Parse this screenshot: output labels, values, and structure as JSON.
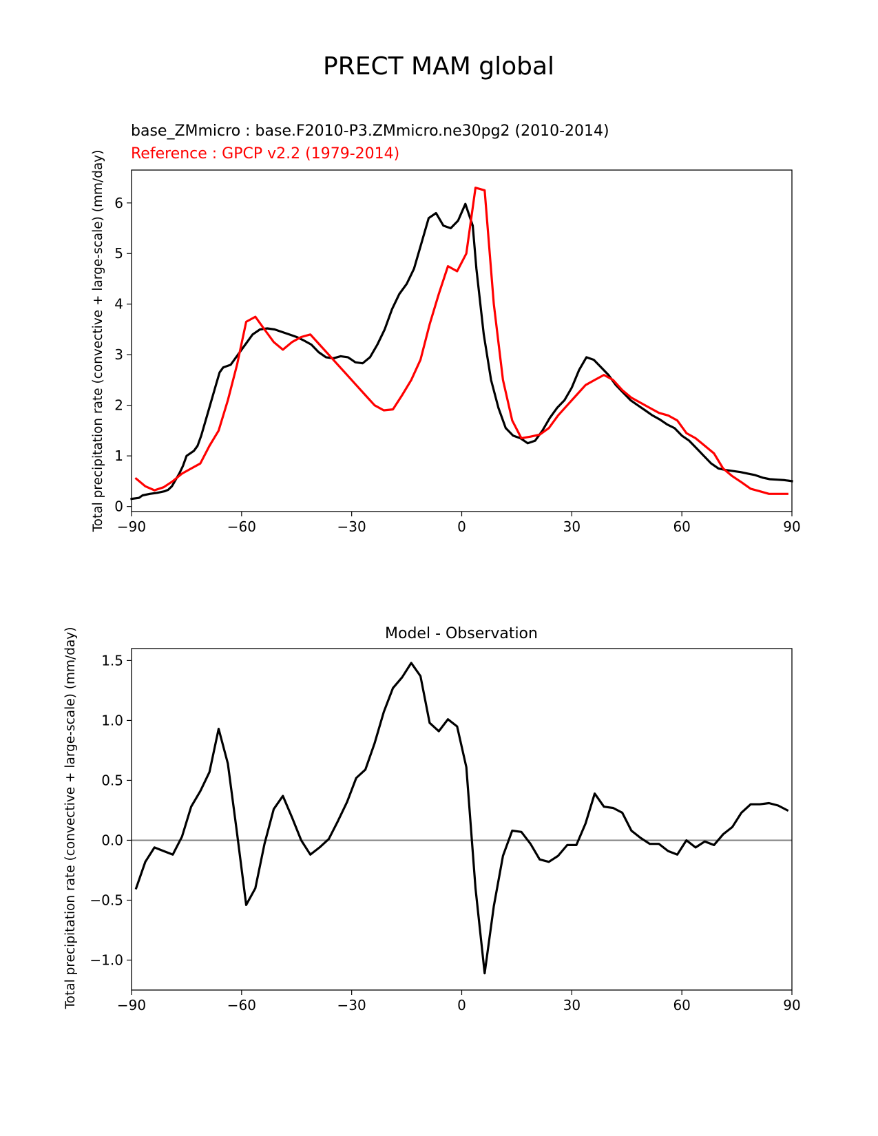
{
  "figure": {
    "suptitle": "PRECT MAM global"
  },
  "chart_data": [
    {
      "type": "line",
      "subtitle_test": "base_ZMmicro : base.F2010-P3.ZMmicro.ne30pg2 (2010-2014)",
      "subtitle_ref": "Reference : GPCP v2.2 (1979-2014)",
      "xlabel": "",
      "ylabel": "Total precipitation rate (convective + large-scale) (mm/day)",
      "xlim": [
        -90,
        90
      ],
      "ylim": [
        -0.1,
        6.65
      ],
      "xticks": [
        -90,
        -60,
        -30,
        0,
        30,
        60,
        90
      ],
      "xtick_labels": [
        "−90",
        "−60",
        "−30",
        "0",
        "30",
        "60",
        "90"
      ],
      "yticks": [
        0,
        1,
        2,
        3,
        4,
        5,
        6
      ],
      "ytick_labels": [
        "0",
        "1",
        "2",
        "3",
        "4",
        "5",
        "6"
      ],
      "grid": false,
      "series": [
        {
          "name": "base_ZMmicro",
          "color": "#000000",
          "x": [
            -90,
            -88,
            -87,
            -85,
            -83,
            -81,
            -80,
            -79,
            -77,
            -76,
            -75,
            -73,
            -72,
            -71,
            -69,
            -67,
            -66,
            -65,
            -63,
            -61,
            -59,
            -57,
            -55,
            -53,
            -51,
            -49,
            -47,
            -45,
            -43,
            -41,
            -39,
            -37,
            -35,
            -33,
            -31,
            -29,
            -27,
            -25,
            -23,
            -21,
            -19,
            -17,
            -15,
            -13,
            -11,
            -9,
            -7,
            -5,
            -3,
            -1,
            1,
            3,
            4,
            6,
            8,
            10,
            12,
            14,
            16,
            18,
            20,
            22,
            24,
            26,
            28,
            30,
            32,
            34,
            36,
            38,
            40,
            42,
            44,
            46,
            48,
            50,
            52,
            54,
            56,
            58,
            60,
            62,
            64,
            66,
            68,
            70,
            72,
            74,
            76,
            78,
            80,
            82,
            84,
            86,
            88,
            90
          ],
          "values": [
            0.15,
            0.17,
            0.22,
            0.25,
            0.27,
            0.3,
            0.33,
            0.4,
            0.65,
            0.8,
            1.0,
            1.1,
            1.2,
            1.4,
            1.9,
            2.4,
            2.65,
            2.75,
            2.8,
            3.0,
            3.2,
            3.4,
            3.5,
            3.52,
            3.5,
            3.45,
            3.4,
            3.35,
            3.28,
            3.2,
            3.05,
            2.95,
            2.93,
            2.97,
            2.95,
            2.85,
            2.83,
            2.95,
            3.2,
            3.5,
            3.9,
            4.2,
            4.4,
            4.7,
            5.2,
            5.7,
            5.8,
            5.55,
            5.5,
            5.65,
            5.98,
            5.55,
            4.7,
            3.4,
            2.5,
            1.95,
            1.55,
            1.4,
            1.35,
            1.25,
            1.3,
            1.5,
            1.75,
            1.95,
            2.1,
            2.35,
            2.7,
            2.95,
            2.9,
            2.75,
            2.6,
            2.4,
            2.25,
            2.1,
            2.0,
            1.9,
            1.8,
            1.72,
            1.62,
            1.55,
            1.4,
            1.3,
            1.15,
            1.0,
            0.85,
            0.75,
            0.72,
            0.7,
            0.68,
            0.65,
            0.62,
            0.57,
            0.54,
            0.53,
            0.52,
            0.5
          ]
        },
        {
          "name": "Reference : GPCP v2.2",
          "color": "#ff0000",
          "x": [
            -88.75,
            -86.25,
            -83.75,
            -81.25,
            -78.75,
            -76.25,
            -73.75,
            -71.25,
            -68.75,
            -66.25,
            -63.75,
            -61.25,
            -58.75,
            -56.25,
            -53.75,
            -51.25,
            -48.75,
            -46.25,
            -43.75,
            -41.25,
            -38.75,
            -36.25,
            -33.75,
            -31.25,
            -28.75,
            -26.25,
            -23.75,
            -21.25,
            -18.75,
            -16.25,
            -13.75,
            -11.25,
            -8.75,
            -6.25,
            -3.75,
            -1.25,
            1.25,
            3.75,
            6.25,
            8.75,
            11.25,
            13.75,
            16.25,
            18.75,
            21.25,
            23.75,
            26.25,
            28.75,
            31.25,
            33.75,
            36.25,
            38.75,
            41.25,
            43.75,
            46.25,
            48.75,
            51.25,
            53.75,
            56.25,
            58.75,
            61.25,
            63.75,
            66.25,
            68.75,
            71.25,
            73.75,
            76.25,
            78.75,
            81.25,
            83.75,
            86.25,
            88.75
          ],
          "values": [
            0.55,
            0.4,
            0.32,
            0.38,
            0.5,
            0.65,
            0.75,
            0.85,
            1.2,
            1.5,
            2.1,
            2.8,
            3.65,
            3.75,
            3.5,
            3.25,
            3.1,
            3.25,
            3.35,
            3.4,
            3.2,
            3.0,
            2.8,
            2.6,
            2.4,
            2.2,
            2.0,
            1.9,
            1.92,
            2.2,
            2.5,
            2.9,
            3.6,
            4.2,
            4.75,
            4.65,
            5.0,
            6.3,
            6.25,
            4.0,
            2.5,
            1.7,
            1.35,
            1.38,
            1.42,
            1.55,
            1.8,
            2.0,
            2.2,
            2.4,
            2.5,
            2.6,
            2.5,
            2.3,
            2.15,
            2.05,
            1.95,
            1.85,
            1.8,
            1.7,
            1.45,
            1.35,
            1.2,
            1.05,
            0.75,
            0.6,
            0.48,
            0.35,
            0.3,
            0.25,
            0.25,
            0.25
          ]
        }
      ]
    },
    {
      "type": "line",
      "title": "Model - Observation",
      "xlabel": "",
      "ylabel": "Total precipitation rate (convective + large-scale) (mm/day)",
      "xlim": [
        -90,
        90
      ],
      "ylim": [
        -1.25,
        1.6
      ],
      "xticks": [
        -90,
        -60,
        -30,
        0,
        30,
        60,
        90
      ],
      "xtick_labels": [
        "−90",
        "−60",
        "−30",
        "0",
        "30",
        "60",
        "90"
      ],
      "yticks": [
        -1.0,
        -0.5,
        0.0,
        0.5,
        1.0,
        1.5
      ],
      "ytick_labels": [
        "−1.0",
        "−0.5",
        "0.0",
        "0.5",
        "1.0",
        "1.5"
      ],
      "grid": false,
      "zero_line": {
        "y": 0,
        "color": "#808080"
      },
      "series": [
        {
          "name": "",
          "color": "#000000",
          "x": [
            -88.75,
            -86.25,
            -83.75,
            -81.25,
            -78.75,
            -76.25,
            -73.75,
            -71.25,
            -68.75,
            -66.25,
            -63.75,
            -61.25,
            -58.75,
            -56.25,
            -53.75,
            -51.25,
            -48.75,
            -46.25,
            -43.75,
            -41.25,
            -38.75,
            -36.25,
            -33.75,
            -31.25,
            -28.75,
            -26.25,
            -23.75,
            -21.25,
            -18.75,
            -16.25,
            -13.75,
            -11.25,
            -8.75,
            -6.25,
            -3.75,
            -1.25,
            1.25,
            3.75,
            6.25,
            8.75,
            11.25,
            13.75,
            16.25,
            18.75,
            21.25,
            23.75,
            26.25,
            28.75,
            31.25,
            33.75,
            36.25,
            38.75,
            41.25,
            43.75,
            46.25,
            48.75,
            51.25,
            53.75,
            56.25,
            58.75,
            61.25,
            63.75,
            66.25,
            68.75,
            71.25,
            73.75,
            76.25,
            78.75,
            81.25,
            83.75,
            86.25,
            88.75
          ],
          "values": [
            -0.4,
            -0.18,
            -0.06,
            -0.09,
            -0.12,
            0.03,
            0.28,
            0.41,
            0.57,
            0.93,
            0.64,
            0.06,
            -0.54,
            -0.4,
            -0.03,
            0.26,
            0.37,
            0.19,
            0.0,
            -0.12,
            -0.06,
            0.01,
            0.16,
            0.32,
            0.52,
            0.59,
            0.81,
            1.07,
            1.27,
            1.36,
            1.48,
            1.37,
            0.98,
            0.91,
            1.01,
            0.95,
            0.61,
            -0.4,
            -1.11,
            -0.55,
            -0.13,
            0.08,
            0.07,
            -0.03,
            -0.16,
            -0.18,
            -0.13,
            -0.04,
            -0.04,
            0.14,
            0.39,
            0.28,
            0.27,
            0.23,
            0.08,
            0.02,
            -0.03,
            -0.03,
            -0.09,
            -0.12,
            0.0,
            -0.06,
            -0.01,
            -0.04,
            0.05,
            0.11,
            0.23,
            0.3,
            0.3,
            0.31,
            0.29,
            0.25
          ]
        }
      ]
    }
  ]
}
